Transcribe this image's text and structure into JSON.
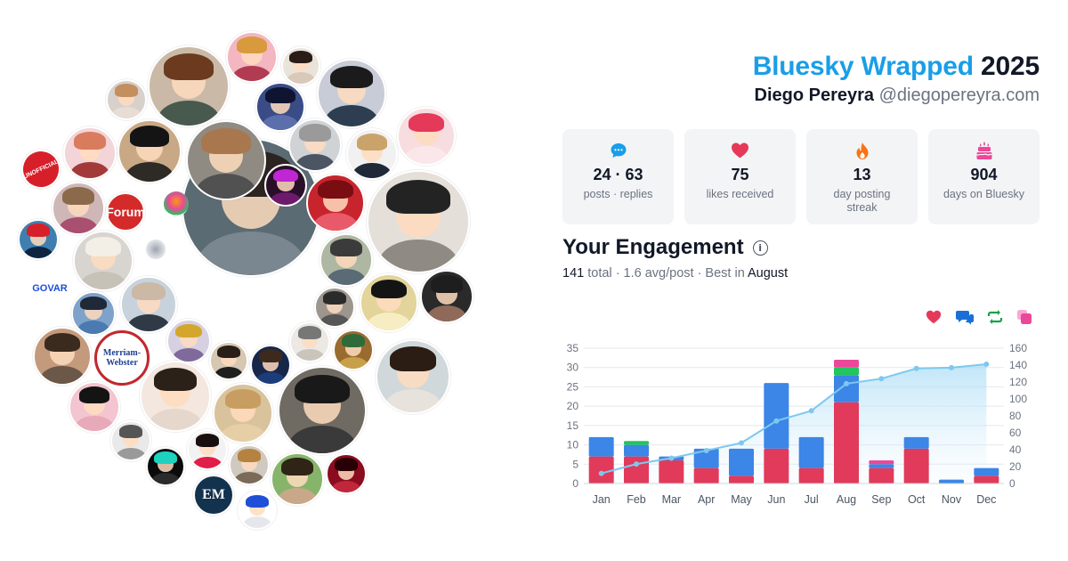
{
  "header": {
    "brand": "Bluesky Wrapped",
    "year": "2025",
    "display_name": "Diego Pereyra",
    "handle": "@diegopereyra.com"
  },
  "stats": [
    {
      "icon": "speech-bubble-icon",
      "color": "#1a9ee8",
      "value": "24 · 63",
      "label": "posts · replies"
    },
    {
      "icon": "heart-icon",
      "color": "#e5395a",
      "value": "75",
      "label": "likes received"
    },
    {
      "icon": "flame-icon",
      "color": "#f97316",
      "value": "13",
      "label": "day posting streak"
    },
    {
      "icon": "cake-icon",
      "color": "#ec4899",
      "value": "904",
      "label": "days on Bluesky"
    }
  ],
  "engagement": {
    "title": "Your Engagement",
    "total": "141",
    "total_word": "total",
    "summary": "· 1.6 avg/post · Best in",
    "best_month": "August"
  },
  "legend": [
    {
      "icon": "heart-icon",
      "color": "#e5395a"
    },
    {
      "icon": "reply-icon",
      "color": "#1a6fd6"
    },
    {
      "icon": "repost-icon",
      "color": "#16a34a"
    },
    {
      "icon": "quote-icon",
      "color": "#ec4899"
    }
  ],
  "avatars": {
    "logos": [
      "Forum",
      "Merriam-Webster",
      "EM",
      "GOVAR",
      "UNOFFICIAL"
    ]
  },
  "chart_data": {
    "type": "bar",
    "categories": [
      "Jan",
      "Feb",
      "Mar",
      "Apr",
      "May",
      "Jun",
      "Jul",
      "Aug",
      "Sep",
      "Oct",
      "Nov",
      "Dec"
    ],
    "series": [
      {
        "color": "#e23a5b",
        "values": [
          7,
          7,
          6,
          4,
          2,
          9,
          4,
          21,
          4,
          9,
          0,
          2
        ]
      },
      {
        "color": "#3b86e6",
        "values": [
          5,
          3,
          1,
          5,
          7,
          17,
          8,
          7,
          1,
          3,
          1,
          2
        ]
      },
      {
        "color": "#22c55e",
        "values": [
          0,
          1,
          0,
          0,
          0,
          0,
          0,
          2,
          0,
          0,
          0,
          0
        ]
      },
      {
        "color": "#ec4899",
        "values": [
          0,
          0,
          0,
          0,
          0,
          0,
          0,
          2,
          1,
          0,
          0,
          0
        ]
      }
    ],
    "cumulative": {
      "color": "#7dc8ef",
      "values": [
        12,
        23,
        30,
        39,
        48,
        74,
        86,
        118,
        124,
        136,
        137,
        141
      ]
    },
    "ylim": [
      0,
      35
    ],
    "y_ticks": [
      0,
      5,
      10,
      15,
      20,
      25,
      30,
      35
    ],
    "y2lim": [
      0,
      160
    ],
    "y2_ticks": [
      0,
      20,
      40,
      60,
      80,
      100,
      120,
      140,
      160
    ],
    "grid": true
  }
}
